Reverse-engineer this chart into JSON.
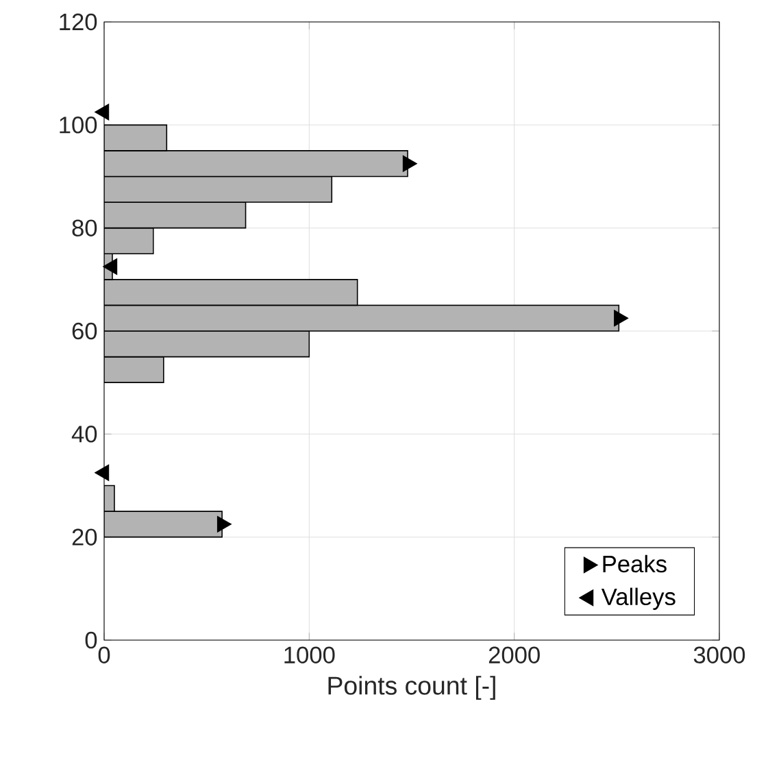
{
  "chart_data": {
    "type": "histogram",
    "orientation": "horizontal",
    "xlabel": "Points count [-]",
    "bins": [
      20,
      25,
      30,
      35,
      40,
      45,
      50,
      55,
      60,
      65,
      70,
      75,
      80,
      85,
      90,
      95,
      100,
      105
    ],
    "values": [
      575,
      50,
      0,
      0,
      0,
      0,
      290,
      1000,
      2510,
      1235,
      40,
      240,
      690,
      1110,
      1480,
      305,
      0
    ],
    "color": "#b3b3b3",
    "series": [
      {
        "name": "Peaks",
        "type": "scatter",
        "marker": "triangle",
        "color": "#000000",
        "x": [
          22.5,
          62.5,
          92.5
        ],
        "values": [
          575,
          2510,
          1480
        ]
      },
      {
        "name": "Valleys",
        "type": "scatter",
        "marker": "triangle",
        "color": "#000000",
        "x": [
          32.5,
          72.5,
          102.5
        ],
        "values": [
          0,
          40,
          0
        ]
      }
    ],
    "xlim": [
      0,
      3000
    ],
    "xticks": [
      0,
      1000,
      2000,
      3000
    ],
    "ylim": [
      0,
      120
    ],
    "yticks": [
      0,
      20,
      40,
      60,
      80,
      100,
      120
    ],
    "grid": true,
    "legend": "bottom right"
  }
}
